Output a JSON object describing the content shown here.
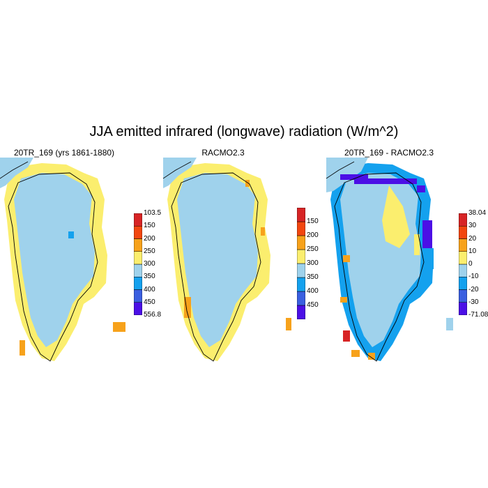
{
  "title": "JJA emitted infrared (longwave) radiation (W/m^2)",
  "panels": [
    {
      "title": "20TR_169 (yrs 1861-1880)",
      "colorbar": {
        "colors": [
          "#4b0fe6",
          "#3a5fe0",
          "#14a1ee",
          "#9fd2ec",
          "#fbee6e",
          "#f7a21b",
          "#f2460f",
          "#d72425"
        ],
        "labels": [
          "103.5",
          "150",
          "200",
          "250",
          "300",
          "350",
          "400",
          "450",
          "556.8"
        ]
      }
    },
    {
      "title": "RACMO2.3",
      "colorbar": {
        "colors": [
          "#4b0fe6",
          "#3a5fe0",
          "#14a1ee",
          "#9fd2ec",
          "#fbee6e",
          "#f7a21b",
          "#f2460f",
          "#d72425"
        ],
        "labels": [
          "150",
          "200",
          "250",
          "300",
          "350",
          "400",
          "450"
        ]
      }
    },
    {
      "title": "20TR_169 - RACMO2.3",
      "colorbar": {
        "colors": [
          "#4b0fe6",
          "#3a5fe0",
          "#14a1ee",
          "#9fd2ec",
          "#fbee6e",
          "#f7a21b",
          "#f2460f",
          "#d72425"
        ],
        "labels": [
          "38.04",
          "30",
          "20",
          "10",
          "0",
          "-10",
          "-20",
          "-30",
          "-71.08"
        ]
      }
    }
  ]
}
